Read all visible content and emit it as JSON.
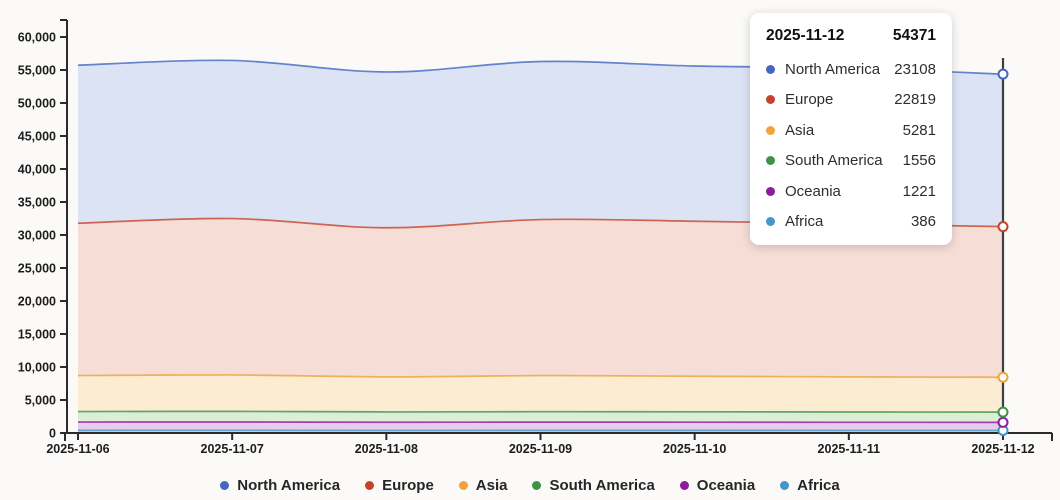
{
  "chart_data": {
    "type": "area",
    "stacked": true,
    "x": [
      "2025-11-06",
      "2025-11-07",
      "2025-11-08",
      "2025-11-09",
      "2025-11-10",
      "2025-11-11",
      "2025-11-12"
    ],
    "series": [
      {
        "name": "North America",
        "color": "#4468c0",
        "fill": "#dbe3f5",
        "values": [
          23940,
          23960,
          23610,
          23950,
          23520,
          23600,
          23108
        ]
      },
      {
        "name": "Europe",
        "color": "#c5432d",
        "fill": "#f6ded7",
        "values": [
          23080,
          23690,
          22590,
          23640,
          23480,
          23180,
          22819
        ]
      },
      {
        "name": "Asia",
        "color": "#eea33c",
        "fill": "#fbecd2",
        "values": [
          5450,
          5520,
          5310,
          5470,
          5390,
          5320,
          5281
        ]
      },
      {
        "name": "South America",
        "color": "#3f9345",
        "fill": "#dcedd8",
        "values": [
          1596,
          1608,
          1566,
          1580,
          1570,
          1560,
          1556
        ]
      },
      {
        "name": "Oceania",
        "color": "#8d1c9d",
        "fill": "#e7cdeb",
        "values": [
          1252,
          1262,
          1238,
          1252,
          1246,
          1232,
          1221
        ]
      },
      {
        "name": "Africa",
        "color": "#4296c8",
        "fill": "#c5daee",
        "values": [
          402,
          408,
          390,
          398,
          395,
          390,
          386
        ]
      }
    ],
    "stack_order": "last-series-at-bottom",
    "ylim": [
      0,
      60000
    ],
    "y_axis": {
      "tick_values": [
        0,
        5000,
        10000,
        15000,
        20000,
        25000,
        30000,
        35000,
        40000,
        45000,
        50000,
        55000,
        60000
      ],
      "tick_labels": [
        "0",
        "5,000",
        "10,000",
        "15,000",
        "20,000",
        "25,000",
        "30,000",
        "35,000",
        "40,000",
        "45,000",
        "50,000",
        "55,000",
        "60,000"
      ]
    },
    "grid": false,
    "legend_position": "bottom",
    "cursor": {
      "x_index": 6,
      "x_label": "2025-11-12"
    }
  },
  "tooltip": {
    "date": "2025-11-12",
    "total": "54371",
    "rows": [
      {
        "name": "North America",
        "value": "23108",
        "color": "#4468c0"
      },
      {
        "name": "Europe",
        "value": "22819",
        "color": "#c5432d"
      },
      {
        "name": "Asia",
        "value": "5281",
        "color": "#eea33c"
      },
      {
        "name": "South America",
        "value": "1556",
        "color": "#3f9345"
      },
      {
        "name": "Oceania",
        "value": "1221",
        "color": "#8d1c9d"
      },
      {
        "name": "Africa",
        "value": "386",
        "color": "#4296c8"
      }
    ]
  },
  "colors": {
    "axis": "#2b2b2b",
    "cursor_line": "#3f3f3f",
    "background": "#fbfaf8"
  }
}
